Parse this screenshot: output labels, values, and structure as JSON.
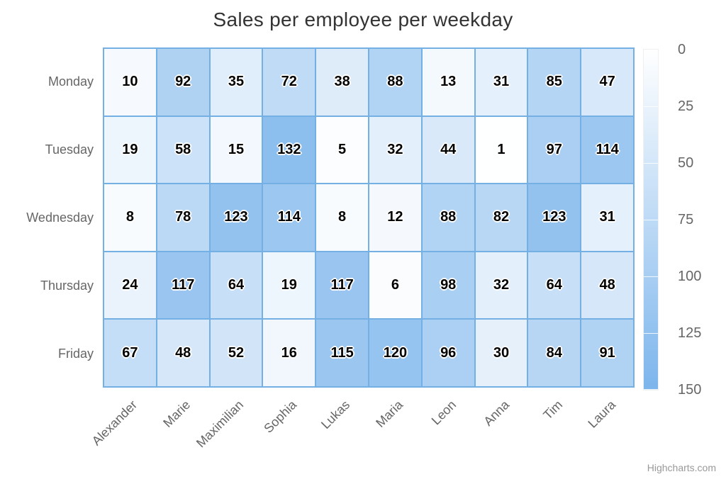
{
  "title": "Sales per employee per weekday",
  "credits_label": "Highcharts.com",
  "colors": {
    "min_color": "#ffffff",
    "max_color": "#7cb5ec",
    "cell_border": "#74b0e4",
    "title_color": "#333333",
    "axis_label_color": "#666666",
    "credits_color": "#999999",
    "data_label_color": "#000000"
  },
  "chart_data": {
    "type": "heatmap",
    "title": "Sales per employee per weekday",
    "xlabel": "",
    "ylabel": "",
    "x_categories": [
      "Alexander",
      "Marie",
      "Maximilian",
      "Sophia",
      "Lukas",
      "Maria",
      "Leon",
      "Anna",
      "Tim",
      "Laura"
    ],
    "y_categories": [
      "Monday",
      "Tuesday",
      "Wednesday",
      "Thursday",
      "Friday"
    ],
    "rows": [
      [
        10,
        92,
        35,
        72,
        38,
        88,
        13,
        31,
        85,
        47
      ],
      [
        19,
        58,
        15,
        132,
        5,
        32,
        44,
        1,
        97,
        114
      ],
      [
        8,
        78,
        123,
        114,
        8,
        12,
        88,
        82,
        123,
        31
      ],
      [
        24,
        117,
        64,
        19,
        117,
        6,
        98,
        32,
        64,
        48
      ],
      [
        67,
        48,
        52,
        16,
        115,
        120,
        96,
        30,
        84,
        91
      ]
    ],
    "color_axis": {
      "min": 0,
      "max": 150,
      "tick_labels": [
        0,
        25,
        50,
        75,
        100,
        125,
        150
      ],
      "min_color": "#ffffff",
      "max_color": "#7cb5ec"
    },
    "legend_position": "right",
    "grid": false,
    "x_label_rotation": -45
  }
}
